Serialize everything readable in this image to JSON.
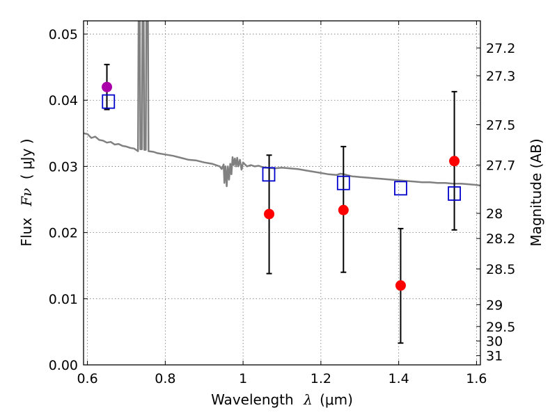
{
  "chart_data": {
    "type": "scatter",
    "title": "",
    "xlabel_prefix": "Wavelength",
    "xlabel_symbol": "λ",
    "xlabel_unit": "(μm)",
    "ylabel_prefix": "Flux",
    "ylabel_symbol": "Fν",
    "ylabel_unit": "( μJy )",
    "y2label": "Magnitude (AB)",
    "xlim": [
      0.59,
      1.61
    ],
    "ylim": [
      0.0,
      0.052
    ],
    "xticks": [
      0.6,
      0.8,
      1.0,
      1.2,
      1.4,
      1.6
    ],
    "xtick_labels": [
      "0.6",
      "0.8",
      "1",
      "1.2",
      "1.4",
      "1.6"
    ],
    "yticks": [
      0.0,
      0.01,
      0.02,
      0.03,
      0.04,
      0.05
    ],
    "ytick_labels": [
      "0.00",
      "0.01",
      "0.02",
      "0.03",
      "0.04",
      "0.05"
    ],
    "y2ticks": [
      {
        "label": "27.2",
        "flux": 0.0479
      },
      {
        "label": "27.3",
        "flux": 0.0437
      },
      {
        "label": "27.5",
        "flux": 0.0363
      },
      {
        "label": "27.7",
        "flux": 0.0302
      },
      {
        "label": "28",
        "flux": 0.0229
      },
      {
        "label": "28.2",
        "flux": 0.0191
      },
      {
        "label": "28.5",
        "flux": 0.0145
      },
      {
        "label": "29",
        "flux": 0.0091
      },
      {
        "label": "29.5",
        "flux": 0.0058
      },
      {
        "label": "30",
        "flux": 0.0036
      },
      {
        "label": "31",
        "flux": 0.0014
      }
    ],
    "grid": true,
    "model_spectrum": {
      "color": "#808080",
      "points": [
        [
          0.59,
          0.035
        ],
        [
          0.6,
          0.0349
        ],
        [
          0.61,
          0.0343
        ],
        [
          0.62,
          0.0345
        ],
        [
          0.63,
          0.034
        ],
        [
          0.64,
          0.0339
        ],
        [
          0.65,
          0.0336
        ],
        [
          0.66,
          0.0337
        ],
        [
          0.67,
          0.0333
        ],
        [
          0.68,
          0.0334
        ],
        [
          0.69,
          0.0331
        ],
        [
          0.7,
          0.033
        ],
        [
          0.71,
          0.0328
        ],
        [
          0.72,
          0.0327
        ],
        [
          0.725,
          0.0325
        ],
        [
          0.73,
          0.0323
        ],
        [
          0.732,
          0.06
        ],
        [
          0.734,
          0.06
        ],
        [
          0.736,
          0.0326
        ],
        [
          0.74,
          0.0326
        ],
        [
          0.742,
          0.06
        ],
        [
          0.744,
          0.06
        ],
        [
          0.746,
          0.0325
        ],
        [
          0.75,
          0.0325
        ],
        [
          0.752,
          0.06
        ],
        [
          0.755,
          0.06
        ],
        [
          0.757,
          0.0323
        ],
        [
          0.77,
          0.0322
        ],
        [
          0.78,
          0.032
        ],
        [
          0.8,
          0.0318
        ],
        [
          0.82,
          0.0316
        ],
        [
          0.84,
          0.0313
        ],
        [
          0.86,
          0.031
        ],
        [
          0.88,
          0.0309
        ],
        [
          0.9,
          0.0306
        ],
        [
          0.92,
          0.0304
        ],
        [
          0.94,
          0.03
        ],
        [
          0.945,
          0.0296
        ],
        [
          0.95,
          0.0303
        ],
        [
          0.952,
          0.0275
        ],
        [
          0.955,
          0.03
        ],
        [
          0.958,
          0.027
        ],
        [
          0.961,
          0.03
        ],
        [
          0.964,
          0.028
        ],
        [
          0.967,
          0.0304
        ],
        [
          0.97,
          0.0288
        ],
        [
          0.973,
          0.0314
        ],
        [
          0.976,
          0.0302
        ],
        [
          0.979,
          0.0312
        ],
        [
          0.982,
          0.03
        ],
        [
          0.985,
          0.0313
        ],
        [
          0.988,
          0.03
        ],
        [
          0.992,
          0.031
        ],
        [
          0.996,
          0.0295
        ],
        [
          1.0,
          0.0306
        ],
        [
          1.01,
          0.03
        ],
        [
          1.02,
          0.0302
        ],
        [
          1.03,
          0.03
        ],
        [
          1.04,
          0.0301
        ],
        [
          1.05,
          0.0299
        ],
        [
          1.06,
          0.0298
        ],
        [
          1.08,
          0.0297
        ],
        [
          1.1,
          0.0298
        ],
        [
          1.12,
          0.0297
        ],
        [
          1.14,
          0.0296
        ],
        [
          1.16,
          0.0294
        ],
        [
          1.18,
          0.0292
        ],
        [
          1.2,
          0.029
        ],
        [
          1.22,
          0.0288
        ],
        [
          1.24,
          0.0287
        ],
        [
          1.25,
          0.0289
        ],
        [
          1.26,
          0.0288
        ],
        [
          1.28,
          0.0285
        ],
        [
          1.3,
          0.0284
        ],
        [
          1.32,
          0.0283
        ],
        [
          1.34,
          0.0282
        ],
        [
          1.36,
          0.0281
        ],
        [
          1.38,
          0.028
        ],
        [
          1.4,
          0.0279
        ],
        [
          1.42,
          0.0278
        ],
        [
          1.44,
          0.0277
        ],
        [
          1.46,
          0.0276
        ],
        [
          1.48,
          0.0276
        ],
        [
          1.5,
          0.0275
        ],
        [
          1.52,
          0.0275
        ],
        [
          1.54,
          0.0274
        ],
        [
          1.56,
          0.0274
        ],
        [
          1.58,
          0.0273
        ],
        [
          1.6,
          0.0272
        ],
        [
          1.61,
          0.0271
        ]
      ]
    },
    "observed": {
      "color": "#ff0000",
      "points": [
        {
          "x": 1.067,
          "y": 0.0228,
          "yerr_low": 0.0138,
          "yerr_high": 0.0317
        },
        {
          "x": 1.258,
          "y": 0.0234,
          "yerr_low": 0.014,
          "yerr_high": 0.033
        },
        {
          "x": 1.405,
          "y": 0.012,
          "yerr_low": 0.0033,
          "yerr_high": 0.0206
        },
        {
          "x": 1.543,
          "y": 0.0308,
          "yerr_low": 0.0204,
          "yerr_high": 0.0413
        }
      ]
    },
    "observed_special": {
      "color": "#aa00aa",
      "points": [
        {
          "x": 0.65,
          "y": 0.042,
          "yerr_low": 0.0386,
          "yerr_high": 0.0454
        }
      ]
    },
    "model_photometry": {
      "color": "#0000cc",
      "points": [
        {
          "x": 0.654,
          "y": 0.0398
        },
        {
          "x": 1.066,
          "y": 0.0288
        },
        {
          "x": 1.258,
          "y": 0.0275
        },
        {
          "x": 1.405,
          "y": 0.0267
        },
        {
          "x": 1.543,
          "y": 0.0259
        }
      ]
    }
  }
}
